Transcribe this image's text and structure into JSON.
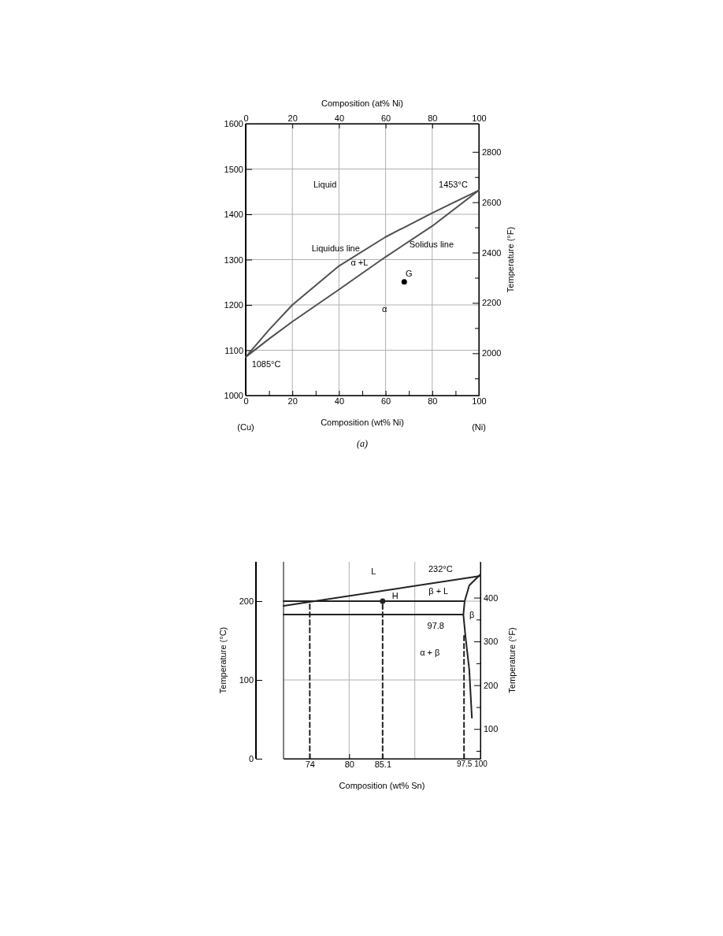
{
  "chart_data": [
    {
      "type": "line",
      "x2label": "Composition (at% Ni)",
      "xlabel": "Composition (wt% Ni)",
      "y2label": "Temperature (°F)",
      "xlim": [
        0,
        100
      ],
      "xticks": [
        0,
        {
          "value": 10,
          "label": null
        },
        20,
        {
          "value": 30,
          "label": null
        },
        40,
        {
          "value": 50,
          "label": null
        },
        60,
        {
          "value": 70,
          "label": null
        },
        80,
        {
          "value": 90,
          "label": null
        },
        100
      ],
      "x2lim": [
        0,
        100
      ],
      "x2ticks": [
        0,
        20,
        40,
        60,
        80,
        100
      ],
      "ylim": [
        1000,
        1600
      ],
      "yticks": [
        1000,
        1100,
        1200,
        1300,
        1400,
        1500,
        1600
      ],
      "y2lim": [
        1832,
        2912
      ],
      "y2ticks": [
        {
          "value": 1900,
          "label": null
        },
        2000,
        {
          "value": 2100,
          "label": null
        },
        2200,
        {
          "value": 2300,
          "label": null
        },
        2400,
        {
          "value": 2500,
          "label": null
        },
        2600,
        {
          "value": 2700,
          "label": null
        },
        2800
      ],
      "grid": true,
      "series": [
        {
          "type": "line",
          "color": "#505050",
          "x": [
            0,
            10,
            20,
            40,
            60,
            80,
            100
          ],
          "values": [
            1085,
            1145,
            1200,
            1286,
            1350,
            1403,
            1453
          ]
        },
        {
          "type": "line",
          "color": "#505050",
          "x": [
            0,
            10,
            20,
            40,
            60,
            80,
            100
          ],
          "values": [
            1085,
            1125,
            1163,
            1234,
            1306,
            1374,
            1453
          ]
        },
        {
          "type": "scatter",
          "color": "#000000",
          "x": [
            68
          ],
          "values": [
            1251
          ]
        }
      ],
      "annotations": [
        "Liquid",
        "1453°C",
        "Liquidus line",
        "Solidus line",
        "α +L",
        "G",
        "α",
        "1085°C",
        "(Cu)",
        "(Ni)",
        "(a)"
      ]
    },
    {
      "type": "line",
      "xlabel": "Composition (wt% Sn)",
      "ylabel": "Temperature (°C)",
      "y2label": "Temperature (°F)",
      "xlim": [
        70,
        100
      ],
      "xticks": [
        74,
        80,
        85.1,
        97.5,
        100
      ],
      "ylim": [
        0,
        250
      ],
      "yticks": [
        0,
        100,
        200
      ],
      "y2lim": [
        32,
        482
      ],
      "y2ticks": [
        {
          "value": 50,
          "label": null
        },
        100,
        {
          "value": 150,
          "label": null
        },
        200,
        {
          "value": 250,
          "label": null
        },
        300,
        {
          "value": 350,
          "label": null
        },
        400
      ],
      "ref_lines": [
        {
          "axis": "x",
          "value": 80,
          "color": "#b0b0b0"
        },
        {
          "axis": "x",
          "value": 90,
          "color": "#b0b0b0"
        },
        {
          "axis": "y",
          "value": 100,
          "color": "#b0b0b0"
        },
        {
          "axis": "y",
          "value": 200,
          "color": "#b0b0b0"
        }
      ],
      "series": [
        {
          "type": "line",
          "color": "#222222",
          "x": [
            70,
            100
          ],
          "values": [
            194,
            232
          ]
        },
        {
          "type": "line",
          "color": "#222222",
          "x": [
            70,
            97.4
          ],
          "values": [
            200,
            200
          ]
        },
        {
          "type": "line",
          "color": "#222222",
          "x": [
            70,
            97.4
          ],
          "values": [
            183,
            183
          ]
        },
        {
          "type": "line",
          "color": "#222222",
          "x": [
            100,
            98.3,
            97.6,
            97.4,
            97.7,
            98.3,
            98.7
          ],
          "values": [
            234,
            220,
            200,
            183,
            157,
            113,
            52
          ]
        },
        {
          "type": "line",
          "color": "#222222",
          "line_style": "dashed",
          "x": [
            74,
            74
          ],
          "values": [
            0,
            200
          ]
        },
        {
          "type": "line",
          "color": "#222222",
          "line_style": "dashed",
          "x": [
            85.1,
            85.1
          ],
          "values": [
            0,
            200
          ]
        },
        {
          "type": "line",
          "color": "#222222",
          "line_style": "dashed",
          "x": [
            97.5,
            97.5
          ],
          "values": [
            0,
            157
          ]
        },
        {
          "type": "scatter",
          "color": "#222222",
          "x": [
            85.1
          ],
          "values": [
            200
          ]
        }
      ],
      "annotations": [
        "L",
        "232°C",
        "β + L",
        "H",
        "β",
        "97.8",
        "α + β"
      ]
    }
  ]
}
